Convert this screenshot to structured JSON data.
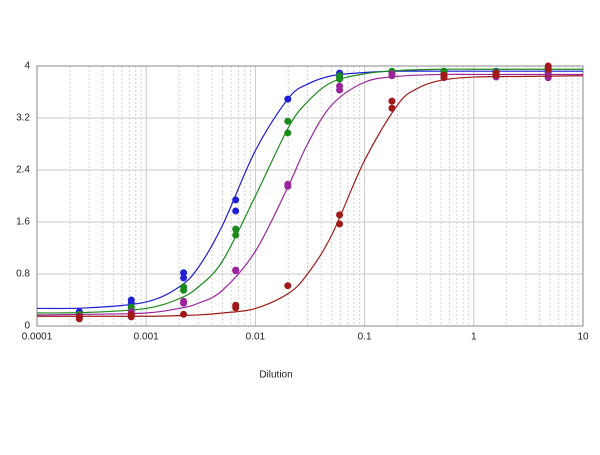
{
  "chart_data": {
    "type": "scatter",
    "x_label": "Dilution",
    "xscale": "log",
    "xlim": [
      0.0001,
      10
    ],
    "xticks": [
      0.0001,
      0.001,
      0.01,
      0.1,
      1,
      10
    ],
    "xminor_ticks": [
      0.0002,
      0.0003,
      0.0004,
      0.0005,
      0.0006,
      0.0007,
      0.0008,
      0.0009,
      0.002,
      0.003,
      0.004,
      0.005,
      0.006,
      0.007,
      0.008,
      0.009,
      0.02,
      0.03,
      0.04,
      0.05,
      0.06,
      0.07,
      0.08,
      0.09,
      0.2,
      0.3,
      0.4,
      0.5,
      0.6,
      0.7,
      0.8,
      0.9,
      2,
      3,
      4,
      5,
      6,
      7,
      8,
      9
    ],
    "ylim": [
      0,
      4
    ],
    "yticks": [
      0,
      0.8,
      1.6,
      2.4,
      3.2,
      4
    ],
    "grid": true,
    "series": [
      {
        "color": "#1f1fd6",
        "x": [
          0.000244,
          0.000244,
          0.00073,
          0.00073,
          0.0022,
          0.0022,
          0.0066,
          0.0066,
          0.0198,
          0.059,
          0.059,
          0.178,
          0.533,
          1.6,
          4.8,
          4.8
        ],
        "values": [
          0.22,
          0.17,
          0.4,
          0.35,
          0.82,
          0.74,
          1.94,
          1.77,
          3.49,
          3.89,
          3.83,
          3.9,
          3.92,
          3.92,
          3.94,
          3.9
        ],
        "fit_x": [
          0.0001,
          0.0003,
          0.001,
          0.002,
          0.003,
          0.005,
          0.01,
          0.02,
          0.03,
          0.05,
          0.1,
          0.2,
          0.5,
          1,
          3,
          10
        ],
        "fit_values": [
          0.27,
          0.28,
          0.37,
          0.6,
          0.9,
          1.55,
          2.7,
          3.5,
          3.72,
          3.85,
          3.9,
          3.92,
          3.92,
          3.92,
          3.92,
          3.92
        ]
      },
      {
        "color": "#1a8a1a",
        "x": [
          0.000244,
          0.000244,
          0.00073,
          0.00073,
          0.0022,
          0.0022,
          0.0066,
          0.0066,
          0.0198,
          0.0198,
          0.059,
          0.059,
          0.178,
          0.178,
          0.533,
          0.533,
          1.6,
          4.8,
          4.8
        ],
        "values": [
          0.18,
          0.15,
          0.29,
          0.25,
          0.6,
          0.55,
          1.49,
          1.4,
          3.15,
          2.97,
          3.8,
          3.85,
          3.92,
          3.9,
          3.92,
          3.89,
          3.9,
          3.98,
          3.94
        ],
        "fit_x": [
          0.0001,
          0.0003,
          0.001,
          0.002,
          0.003,
          0.005,
          0.01,
          0.02,
          0.03,
          0.05,
          0.1,
          0.2,
          0.5,
          1,
          3,
          10
        ],
        "fit_values": [
          0.2,
          0.21,
          0.27,
          0.42,
          0.6,
          1.0,
          2.0,
          3.05,
          3.45,
          3.75,
          3.88,
          3.93,
          3.95,
          3.95,
          3.95,
          3.95
        ]
      },
      {
        "color": "#9a259a",
        "x": [
          0.000244,
          0.000244,
          0.00073,
          0.00073,
          0.0022,
          0.0022,
          0.0066,
          0.0066,
          0.0198,
          0.0198,
          0.059,
          0.059,
          0.178,
          0.178,
          0.533,
          0.533,
          1.6,
          1.6,
          4.8,
          4.8
        ],
        "values": [
          0.15,
          0.12,
          0.22,
          0.18,
          0.38,
          0.35,
          0.85,
          0.86,
          2.18,
          2.15,
          3.69,
          3.63,
          3.88,
          3.85,
          3.85,
          3.82,
          3.86,
          3.83,
          3.86,
          3.82
        ],
        "fit_x": [
          0.0001,
          0.0003,
          0.001,
          0.002,
          0.003,
          0.005,
          0.01,
          0.02,
          0.03,
          0.05,
          0.1,
          0.2,
          0.5,
          1,
          3,
          10
        ],
        "fit_values": [
          0.17,
          0.18,
          0.2,
          0.27,
          0.35,
          0.55,
          1.15,
          2.15,
          2.8,
          3.4,
          3.75,
          3.84,
          3.87,
          3.87,
          3.87,
          3.87
        ]
      },
      {
        "color": "#a01818",
        "x": [
          0.000244,
          0.000244,
          0.00073,
          0.00073,
          0.0022,
          0.0066,
          0.0066,
          0.0198,
          0.059,
          0.059,
          0.178,
          0.178,
          0.533,
          0.533,
          1.6,
          1.6,
          4.8,
          4.8
        ],
        "values": [
          0.14,
          0.11,
          0.18,
          0.14,
          0.18,
          0.32,
          0.28,
          0.62,
          1.71,
          1.57,
          3.46,
          3.35,
          3.86,
          3.83,
          3.89,
          3.86,
          4.0,
          3.95
        ],
        "fit_x": [
          0.0001,
          0.0003,
          0.001,
          0.002,
          0.003,
          0.005,
          0.01,
          0.02,
          0.03,
          0.05,
          0.1,
          0.2,
          0.3,
          0.5,
          1,
          3,
          10
        ],
        "fit_values": [
          0.15,
          0.15,
          0.15,
          0.16,
          0.17,
          0.2,
          0.27,
          0.5,
          0.8,
          1.4,
          2.55,
          3.4,
          3.65,
          3.78,
          3.83,
          3.84,
          3.85
        ]
      }
    ]
  }
}
